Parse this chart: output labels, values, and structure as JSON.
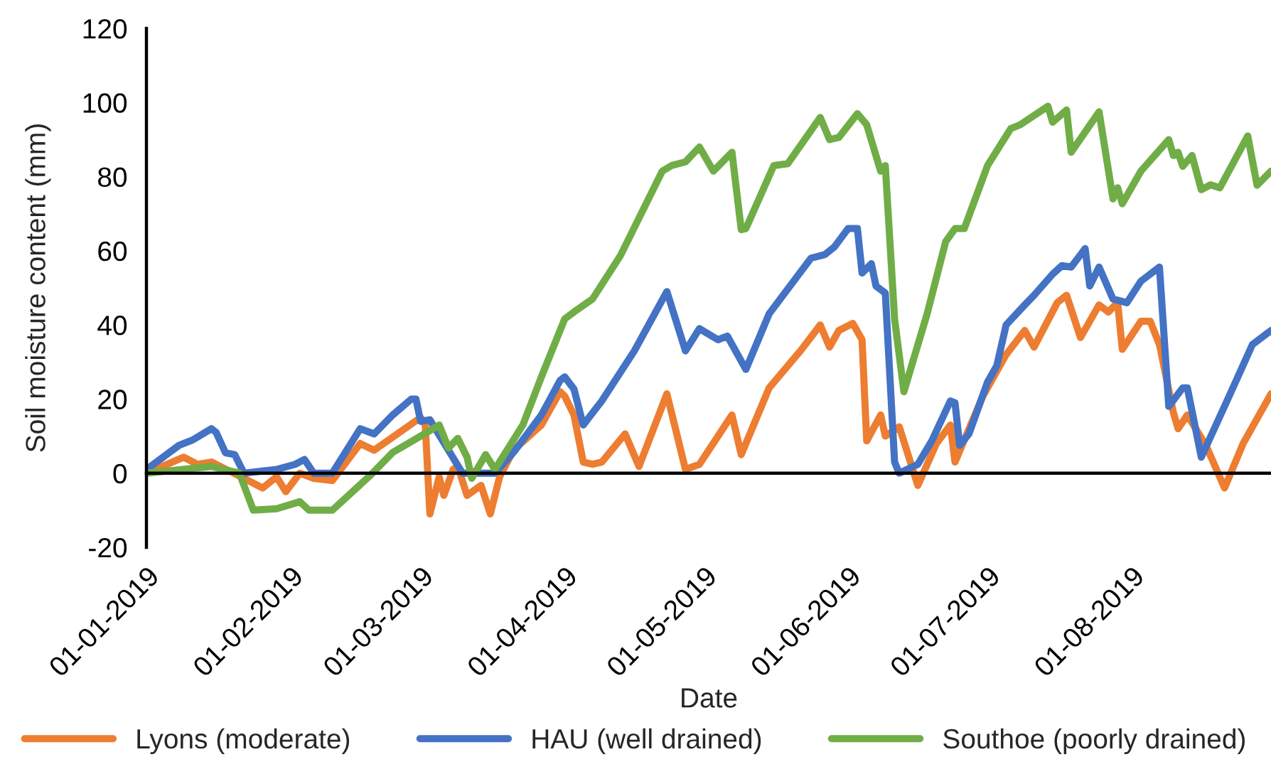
{
  "chart_data": {
    "type": "line",
    "xlabel": "Date",
    "ylabel": "Soil moisture content (mm)",
    "xlim": [
      "2019-01-01",
      "2019-08-31"
    ],
    "ylim": [
      -20,
      120
    ],
    "yticks": [
      -20,
      0,
      20,
      40,
      60,
      80,
      100,
      120
    ],
    "xticks": [
      {
        "value": "2019-01-01",
        "label": "01-01-2019"
      },
      {
        "value": "2019-02-01",
        "label": "01-02-2019"
      },
      {
        "value": "2019-03-01",
        "label": "01-03-2019"
      },
      {
        "value": "2019-04-01",
        "label": "01-04-2019"
      },
      {
        "value": "2019-05-01",
        "label": "01-05-2019"
      },
      {
        "value": "2019-06-01",
        "label": "01-06-2019"
      },
      {
        "value": "2019-07-01",
        "label": "01-07-2019"
      },
      {
        "value": "2019-08-01",
        "label": "01-08-2019"
      }
    ],
    "legend": "bottom",
    "marker": "none",
    "line_style": "solid",
    "series": [
      {
        "name": "Lyons (moderate)",
        "color": "#ed7d31",
        "x": [
          "2019-01-01",
          "2019-01-09",
          "2019-01-12",
          "2019-01-15",
          "2019-01-19",
          "2019-01-26",
          "2019-01-29",
          "2019-01-31",
          "2019-02-03",
          "2019-02-06",
          "2019-02-10",
          "2019-02-16",
          "2019-02-19",
          "2019-03-01",
          "2019-03-02",
          "2019-03-03",
          "2019-03-05",
          "2019-03-06",
          "2019-03-08",
          "2019-03-09",
          "2019-03-11",
          "2019-03-14",
          "2019-03-16",
          "2019-03-18",
          "2019-03-21",
          "2019-03-27",
          "2019-03-31",
          "2019-04-01",
          "2019-04-03",
          "2019-04-05",
          "2019-04-07",
          "2019-04-09",
          "2019-04-14",
          "2019-04-17",
          "2019-04-23",
          "2019-04-27",
          "2019-04-30",
          "2019-05-07",
          "2019-05-09",
          "2019-05-15",
          "2019-05-22",
          "2019-05-26",
          "2019-05-28",
          "2019-05-30",
          "2019-06-02",
          "2019-06-04",
          "2019-06-05",
          "2019-06-08",
          "2019-06-09",
          "2019-06-12",
          "2019-06-16",
          "2019-06-20",
          "2019-06-23",
          "2019-06-24",
          "2019-06-30",
          "2019-07-05",
          "2019-07-09",
          "2019-07-11",
          "2019-07-16",
          "2019-07-18",
          "2019-07-21",
          "2019-07-25",
          "2019-07-27",
          "2019-07-29",
          "2019-07-30",
          "2019-08-03",
          "2019-08-05",
          "2019-08-07",
          "2019-08-10",
          "2019-08-11",
          "2019-08-13",
          "2019-08-17",
          "2019-08-21",
          "2019-08-25",
          "2019-08-31"
        ],
        "values": [
          0,
          4.3,
          2.4,
          3,
          0.5,
          -4,
          -1,
          -5,
          0,
          -1.4,
          -2,
          8,
          6.2,
          15,
          13,
          -11,
          -1,
          -6,
          1,
          1.8,
          -6,
          -3.3,
          -11,
          -1,
          6.2,
          13,
          22,
          20.8,
          15.7,
          3,
          2.4,
          3,
          10.6,
          1.8,
          21.4,
          1,
          2.4,
          15.7,
          5,
          23,
          33.4,
          40,
          34,
          38.5,
          40.4,
          36,
          8.7,
          15.7,
          10,
          12.5,
          -3.3,
          8,
          13,
          3,
          20.8,
          32,
          38.5,
          34,
          46,
          48,
          36.6,
          45.4,
          43.5,
          46,
          33.4,
          41,
          41,
          34.7,
          16.3,
          12,
          15.7,
          7.5,
          -4,
          8,
          21.4
        ]
      },
      {
        "name": "HAU (well drained)",
        "color": "#4472c4",
        "x": [
          "2019-01-01",
          "2019-01-08",
          "2019-01-11",
          "2019-01-15",
          "2019-01-16",
          "2019-01-18",
          "2019-01-20",
          "2019-01-22",
          "2019-01-29",
          "2019-02-02",
          "2019-02-04",
          "2019-02-06",
          "2019-02-10",
          "2019-02-16",
          "2019-02-19",
          "2019-02-23",
          "2019-02-27",
          "2019-02-28",
          "2019-03-01",
          "2019-03-03",
          "2019-03-10",
          "2019-03-17",
          "2019-03-21",
          "2019-03-27",
          "2019-03-31",
          "2019-04-01",
          "2019-04-03",
          "2019-04-05",
          "2019-04-09",
          "2019-04-16",
          "2019-04-23",
          "2019-04-27",
          "2019-04-30",
          "2019-05-04",
          "2019-05-06",
          "2019-05-10",
          "2019-05-15",
          "2019-05-24",
          "2019-05-27",
          "2019-05-29",
          "2019-06-01",
          "2019-06-03",
          "2019-06-04",
          "2019-06-06",
          "2019-06-07",
          "2019-06-09",
          "2019-06-11",
          "2019-06-12",
          "2019-06-16",
          "2019-06-19",
          "2019-06-23",
          "2019-06-24",
          "2019-06-25",
          "2019-06-27",
          "2019-07-01",
          "2019-07-03",
          "2019-07-05",
          "2019-07-09",
          "2019-07-11",
          "2019-07-15",
          "2019-07-17",
          "2019-07-19",
          "2019-07-22",
          "2019-07-23",
          "2019-07-25",
          "2019-07-28",
          "2019-07-31",
          "2019-08-03",
          "2019-08-07",
          "2019-08-09",
          "2019-08-12",
          "2019-08-13",
          "2019-08-16",
          "2019-08-22",
          "2019-08-27",
          "2019-08-31"
        ],
        "values": [
          1,
          7.5,
          9,
          12,
          11,
          5.5,
          5,
          0,
          1,
          2.4,
          3.7,
          0,
          0,
          12,
          10.6,
          15.7,
          20,
          20,
          14,
          14.4,
          0,
          0,
          5.6,
          15.7,
          25,
          26,
          22.7,
          13,
          19.5,
          33,
          49,
          33,
          39,
          36,
          37,
          28,
          43,
          58,
          59,
          61,
          66,
          66,
          54,
          56.5,
          50.5,
          48.6,
          3,
          0,
          2.4,
          8.7,
          19.5,
          19,
          7.5,
          10.6,
          24.6,
          29,
          40,
          45.4,
          48,
          53.7,
          56,
          55.6,
          60.6,
          50.5,
          55.6,
          47,
          46,
          51.8,
          55.6,
          18,
          23,
          23,
          4.3,
          20.8,
          34.7,
          38.5
        ]
      },
      {
        "name": "Southoe (poorly drained)",
        "color": "#70ad47",
        "x": [
          "2019-01-01",
          "2019-01-15",
          "2019-01-21",
          "2019-01-24",
          "2019-01-29",
          "2019-02-03",
          "2019-02-05",
          "2019-02-10",
          "2019-02-18",
          "2019-02-23",
          "2019-03-01",
          "2019-03-05",
          "2019-03-07",
          "2019-03-09",
          "2019-03-11",
          "2019-03-12",
          "2019-03-15",
          "2019-03-17",
          "2019-03-23",
          "2019-03-27",
          "2019-04-01",
          "2019-04-03",
          "2019-04-07",
          "2019-04-13",
          "2019-04-22",
          "2019-04-24",
          "2019-04-27",
          "2019-04-30",
          "2019-05-03",
          "2019-05-07",
          "2019-05-09",
          "2019-05-10",
          "2019-05-16",
          "2019-05-19",
          "2019-05-26",
          "2019-05-28",
          "2019-05-30",
          "2019-06-03",
          "2019-06-05",
          "2019-06-08",
          "2019-06-09",
          "2019-06-11",
          "2019-06-13",
          "2019-06-18",
          "2019-06-22",
          "2019-06-24",
          "2019-06-26",
          "2019-07-01",
          "2019-07-06",
          "2019-07-08",
          "2019-07-14",
          "2019-07-15",
          "2019-07-18",
          "2019-07-19",
          "2019-07-25",
          "2019-07-28",
          "2019-07-29",
          "2019-07-30",
          "2019-08-03",
          "2019-08-09",
          "2019-08-10",
          "2019-08-11",
          "2019-08-12",
          "2019-08-14",
          "2019-08-16",
          "2019-08-18",
          "2019-08-20",
          "2019-08-26",
          "2019-08-28",
          "2019-08-31"
        ],
        "values": [
          0,
          1.8,
          0,
          -10,
          -9.6,
          -7.7,
          -10,
          -10,
          -0.8,
          5.6,
          10,
          13,
          6.8,
          9.4,
          4.3,
          -1.4,
          5,
          1,
          13,
          26,
          41.6,
          43.5,
          47,
          58.7,
          81.5,
          83,
          84,
          88,
          81.5,
          86.6,
          65.7,
          66,
          83,
          83.5,
          96,
          90,
          90.6,
          97,
          94,
          81.5,
          83,
          41.6,
          22,
          43,
          62.5,
          66,
          66,
          83,
          93,
          94,
          99,
          94.7,
          98,
          86.6,
          97.5,
          74,
          77,
          72.7,
          81.5,
          90,
          85.7,
          86.6,
          82.8,
          85.7,
          76.5,
          77.8,
          77,
          91,
          77.7,
          81.5
        ]
      }
    ]
  }
}
